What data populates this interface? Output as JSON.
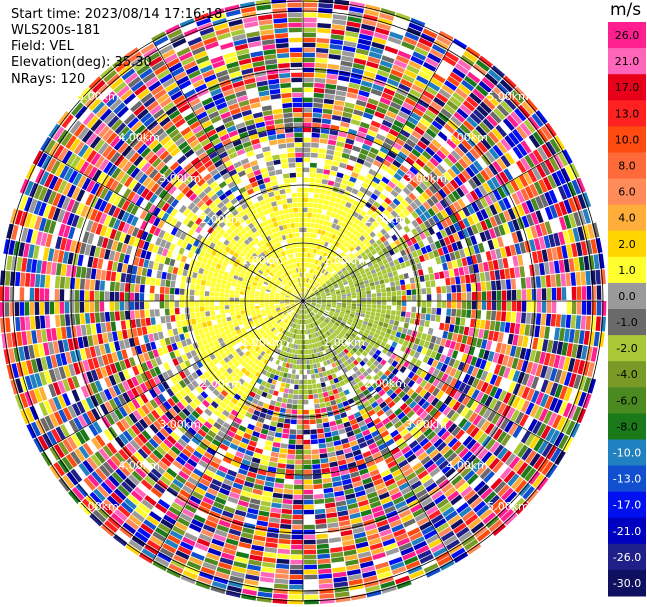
{
  "info": {
    "start_time": "Start time: 2023/08/14 17:16:18",
    "instrument": "WLS200s-181",
    "field": "Field: VEL",
    "elevation": "Elevation(deg): 35.30",
    "nrays": "NRays: 120"
  },
  "colorbar": {
    "unit": "m/s",
    "ticks": [
      "26.0",
      "21.0",
      "17.0",
      "13.0",
      "10.0",
      "8.0",
      "6.0",
      "4.0",
      "2.0",
      "1.0",
      "0.0",
      "-1.0",
      "-2.0",
      "-4.0",
      "-6.0",
      "-8.0",
      "-10.0",
      "-13.0",
      "-17.0",
      "-21.0",
      "-26.0",
      "-30.0"
    ],
    "colors": [
      "#ff1f8f",
      "#ff66bb",
      "#e8001a",
      "#ff2020",
      "#ff4a10",
      "#ff6a3a",
      "#ff8a5a",
      "#ffae3a",
      "#ffd400",
      "#ffff30",
      "#9a9a9a",
      "#6a6a6a",
      "#a8c838",
      "#7a9a28",
      "#4a8a20",
      "#1a7a1a",
      "#2080c0",
      "#1050d0",
      "#0010f0",
      "#0000c0",
      "#20208a",
      "#101060"
    ]
  },
  "chart_data": {
    "type": "ppi-polar",
    "field": "VEL",
    "unit": "m/s",
    "nrays": 120,
    "ring_labels": [
      "1.00km",
      "2.00km",
      "3.00km",
      "4.00km",
      "5.00km"
    ],
    "range_rings_km": [
      1,
      2,
      3,
      4,
      5
    ],
    "value_range": [
      -30.0,
      26.0
    ],
    "pattern": "near-range coherent velocities (yellow +1 to +4 m/s to west and north, olive/green -1 to -6 m/s to east and south); far range noisy speckle across full scale"
  }
}
